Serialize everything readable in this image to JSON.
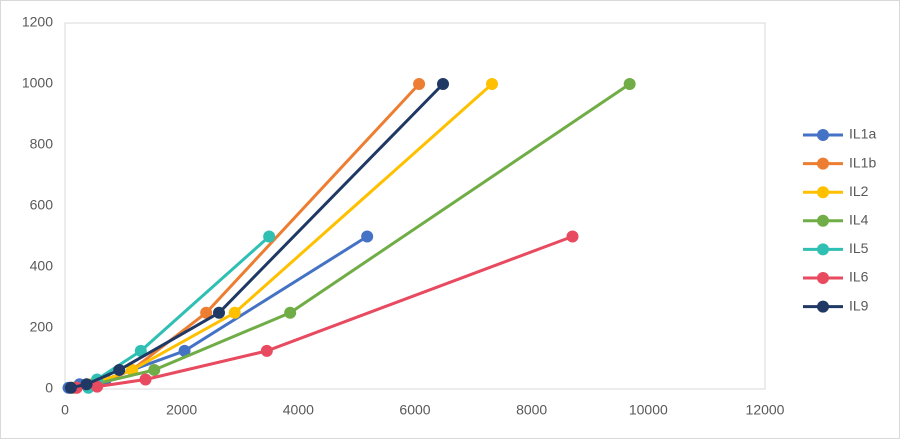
{
  "chart_data": {
    "type": "scatter",
    "xlim": [
      0,
      12000
    ],
    "xticks": [
      0,
      2000,
      4000,
      6000,
      8000,
      10000,
      12000
    ],
    "ylim": [
      0,
      1200
    ],
    "yticks": [
      0,
      200,
      400,
      600,
      800,
      1000,
      1200
    ],
    "grid": false,
    "legend": "right",
    "series": [
      {
        "name": "IL1a",
        "color": "#4472c4",
        "x": [
          60,
          250,
          700,
          2050,
          5180
        ],
        "values": [
          3.9,
          15.6,
          31.25,
          125,
          500
        ]
      },
      {
        "name": "IL1b",
        "color": "#ed7d31",
        "x": [
          200,
          550,
          1150,
          2420,
          6070
        ],
        "values": [
          3.9,
          15.6,
          62.5,
          250,
          1000
        ]
      },
      {
        "name": "IL2",
        "color": "#ffc000",
        "x": [
          120,
          450,
          1150,
          2910,
          7320
        ],
        "values": [
          3.9,
          15.6,
          62.5,
          250,
          1000
        ]
      },
      {
        "name": "IL4",
        "color": "#70ad47",
        "x": [
          150,
          500,
          1530,
          3860,
          9680
        ],
        "values": [
          3.9,
          15.6,
          62.5,
          250,
          1000
        ]
      },
      {
        "name": "IL5",
        "color": "#2fbfb3",
        "x": [
          400,
          550,
          1300,
          3500
        ],
        "values": [
          3.9,
          31.25,
          125,
          500
        ]
      },
      {
        "name": "IL6",
        "color": "#e84a5f",
        "x": [
          200,
          550,
          1380,
          3460,
          8700
        ],
        "values": [
          3.9,
          7.8,
          31.25,
          125,
          500
        ]
      },
      {
        "name": "IL9",
        "color": "#203864",
        "x": [
          100,
          370,
          930,
          2640,
          6480
        ],
        "values": [
          3.9,
          15.6,
          62.5,
          250,
          1000
        ]
      }
    ]
  }
}
